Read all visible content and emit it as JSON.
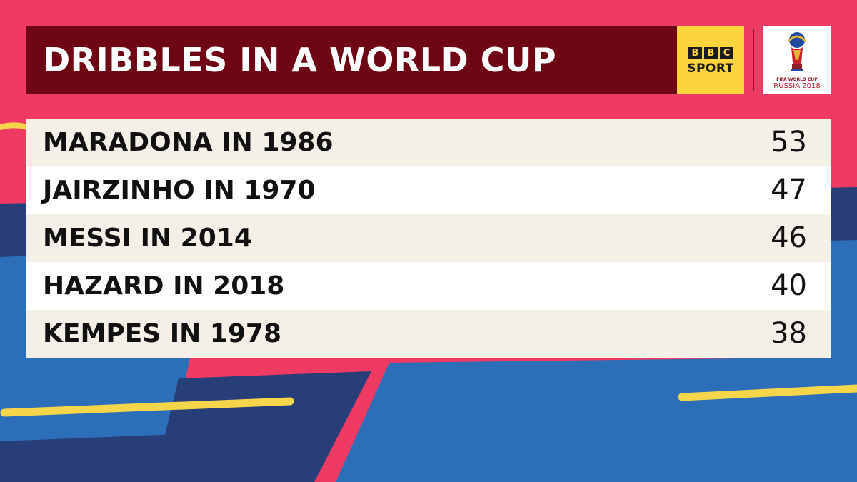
{
  "header": {
    "title": "DRIBBLES IN A WORLD CUP"
  },
  "branding": {
    "bbc_letters": [
      "B",
      "B",
      "C"
    ],
    "bbc_sport": "SPORT",
    "fifa_line1": "FIFA WORLD CUP",
    "fifa_line2": "RUSSIA 2018"
  },
  "colors": {
    "background_pink": "#ef3a63",
    "header_maroon": "#6e0613",
    "bbc_yellow": "#fdd33e",
    "blue": "#2c6fb8",
    "navy": "#283e78",
    "accent_yellow": "#f5d54a",
    "row_alt": "#f4f0e8"
  },
  "chart_data": {
    "type": "table",
    "title": "DRIBBLES IN A WORLD CUP",
    "categories": [
      "MARADONA IN 1986",
      "JAIRZINHO IN 1970",
      "MESSI IN 2014",
      "HAZARD IN 2018",
      "KEMPES IN 1978"
    ],
    "values": [
      53,
      47,
      46,
      40,
      38
    ]
  }
}
